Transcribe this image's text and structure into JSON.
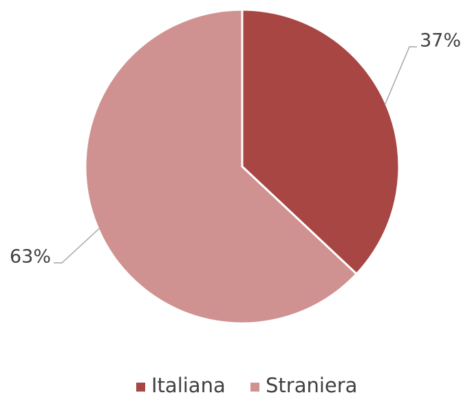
{
  "chart_data": {
    "type": "pie",
    "categories": [
      "Italiana",
      "Straniera"
    ],
    "values": [
      37,
      63
    ],
    "value_labels": [
      "37%",
      "63%"
    ],
    "colors": [
      "#a84644",
      "#d09291"
    ],
    "legend": "bottom"
  }
}
